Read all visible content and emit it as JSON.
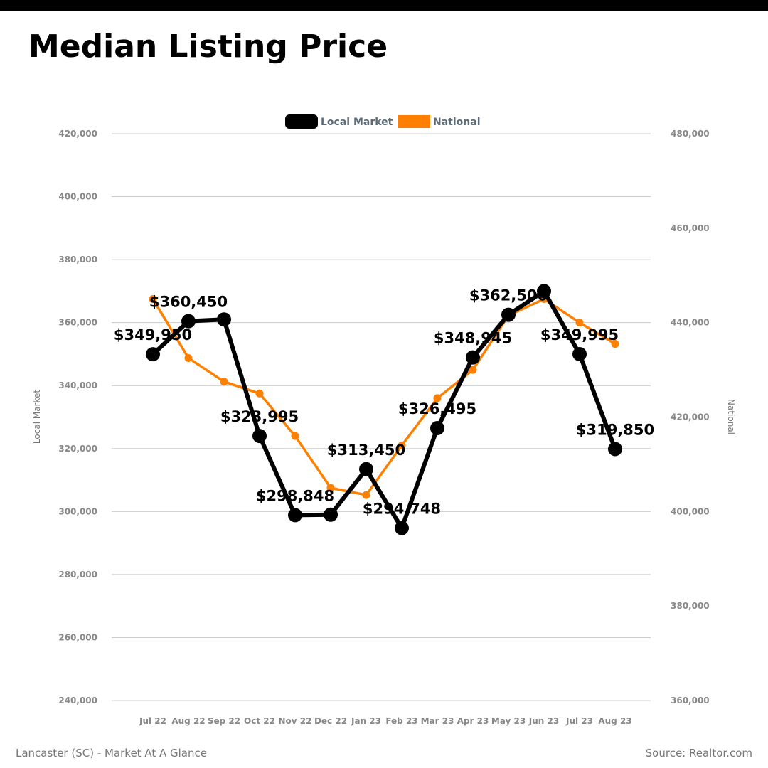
{
  "title": "Median Listing Price",
  "footer": {
    "left": "Lancaster (SC) - Market At A Glance",
    "right": "Source: Realtor.com"
  },
  "colors": {
    "local": "#000000",
    "national": "#ff8000",
    "grid": "#cccccc"
  },
  "chart_data": {
    "type": "line",
    "categories": [
      "Jul 22",
      "Aug 22",
      "Sep 22",
      "Oct 22",
      "Nov 22",
      "Dec 22",
      "Jan 23",
      "Feb 23",
      "Mar 23",
      "Apr 23",
      "May 23",
      "Jun 23",
      "Jul 23",
      "Aug 23"
    ],
    "series": [
      {
        "name": "Local Market",
        "axis": "left",
        "values": [
          349950,
          360450,
          361000,
          323995,
          298848,
          299000,
          313450,
          294748,
          326495,
          348945,
          362500,
          370000,
          349995,
          319850
        ]
      },
      {
        "name": "National",
        "axis": "right",
        "values": [
          445000,
          432500,
          427500,
          425000,
          416000,
          405000,
          403500,
          414000,
          424000,
          430000,
          441500,
          445000,
          440000,
          435500
        ]
      }
    ],
    "data_labels": [
      "$349,950",
      "$360,450",
      "",
      "$323,995",
      "$298,848",
      "",
      "$313,450",
      "$294,748",
      "$326,495",
      "$348,945",
      "$362,500",
      "",
      "$349,995",
      "$319,850"
    ],
    "y_left": {
      "label": "Local Market",
      "ticks": [
        "240,000",
        "260,000",
        "280,000",
        "300,000",
        "320,000",
        "340,000",
        "360,000",
        "380,000",
        "400,000",
        "420,000"
      ],
      "ylim": [
        240000,
        420000
      ]
    },
    "y_right": {
      "label": "National",
      "ticks": [
        "360,000",
        "380,000",
        "400,000",
        "420,000",
        "440,000",
        "460,000",
        "480,000"
      ],
      "ylim": [
        360000,
        480000
      ]
    },
    "grid": true,
    "legend": "top-center"
  }
}
